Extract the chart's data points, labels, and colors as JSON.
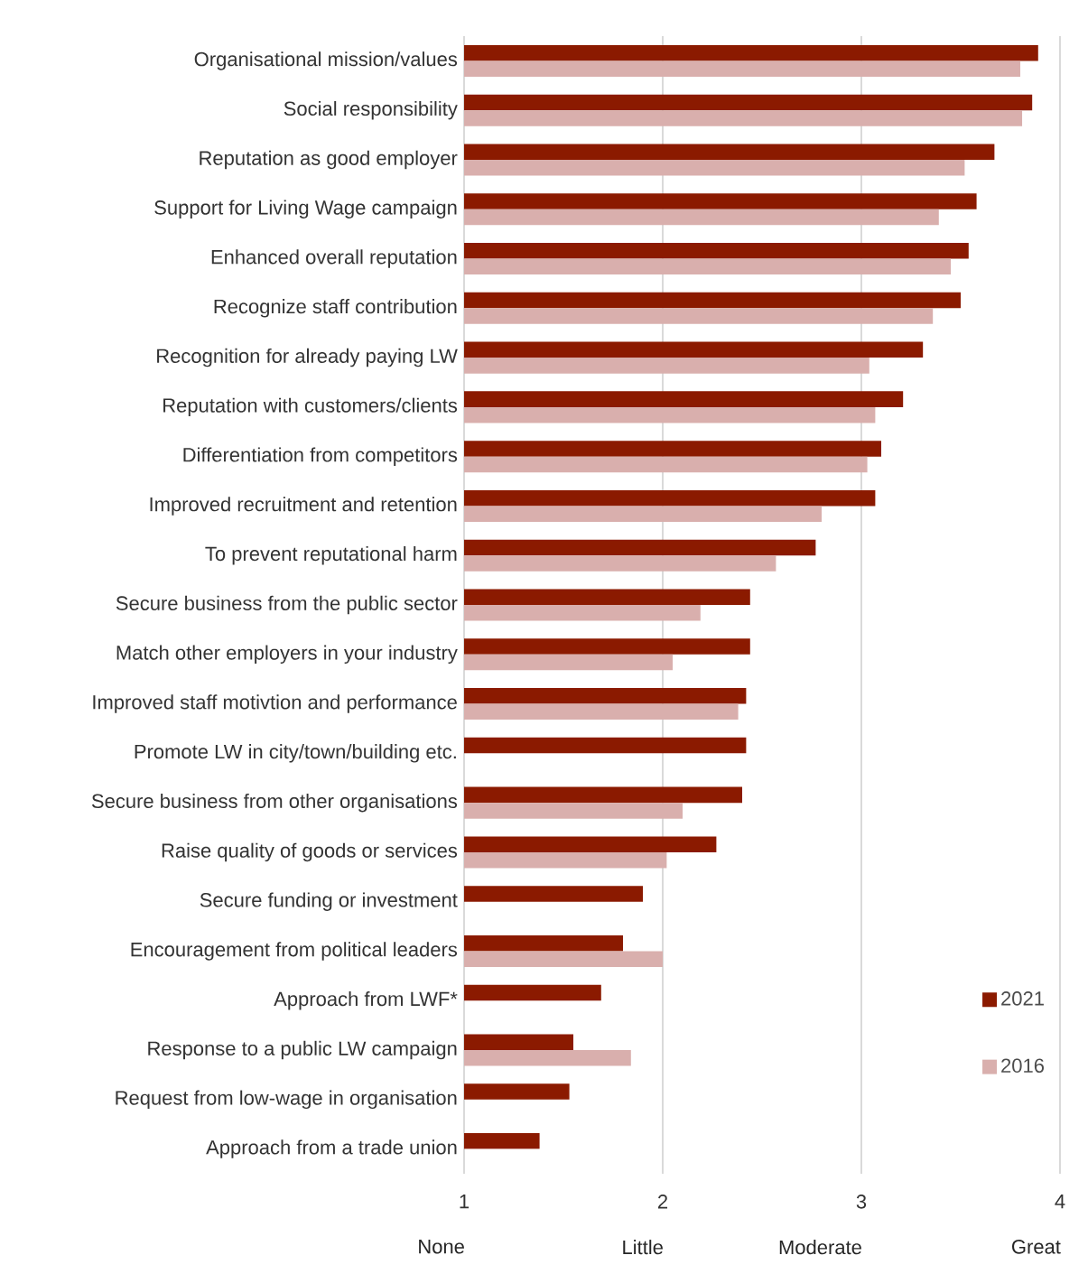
{
  "chart_data": {
    "type": "bar",
    "orientation": "horizontal",
    "categories": [
      "Organisational mission/values",
      "Social responsibility",
      "Reputation as good employer",
      "Support for Living Wage campaign",
      "Enhanced overall reputation",
      "Recognize staff contribution",
      "Recognition for already paying LW",
      "Reputation with customers/clients",
      "Differentiation from competitors",
      "Improved recruitment and retention",
      "To prevent reputational harm",
      "Secure business from the public sector",
      "Match other employers in your industry",
      "Improved staff motivtion and performance",
      "Promote LW in city/town/building etc.",
      "Secure business from other organisations",
      "Raise quality of goods or services",
      "Secure funding or investment",
      "Encouragement from political leaders",
      "Approach from LWF*",
      "Response to a public LW campaign",
      "Request from low-wage in organisation",
      "Approach from a trade union"
    ],
    "series": [
      {
        "name": "2021",
        "color": "#8b1a00",
        "values": [
          3.89,
          3.86,
          3.67,
          3.58,
          3.54,
          3.5,
          3.31,
          3.21,
          3.1,
          3.07,
          2.77,
          2.44,
          2.44,
          2.42,
          2.42,
          2.4,
          2.27,
          1.9,
          1.8,
          1.69,
          1.55,
          1.53,
          1.38
        ]
      },
      {
        "name": "2016",
        "color": "#d9afad",
        "values": [
          3.8,
          3.81,
          3.52,
          3.39,
          3.45,
          3.36,
          3.04,
          3.07,
          3.03,
          2.8,
          2.57,
          2.19,
          2.05,
          2.38,
          null,
          2.1,
          2.02,
          null,
          2.0,
          null,
          1.84,
          null,
          null
        ]
      }
    ],
    "xlim": [
      1,
      4
    ],
    "xticks": [
      1,
      2,
      3,
      4
    ],
    "annotations": [
      "None",
      "Little",
      "Moderate",
      "Great"
    ],
    "grid": "x",
    "legend": "bottom right"
  }
}
